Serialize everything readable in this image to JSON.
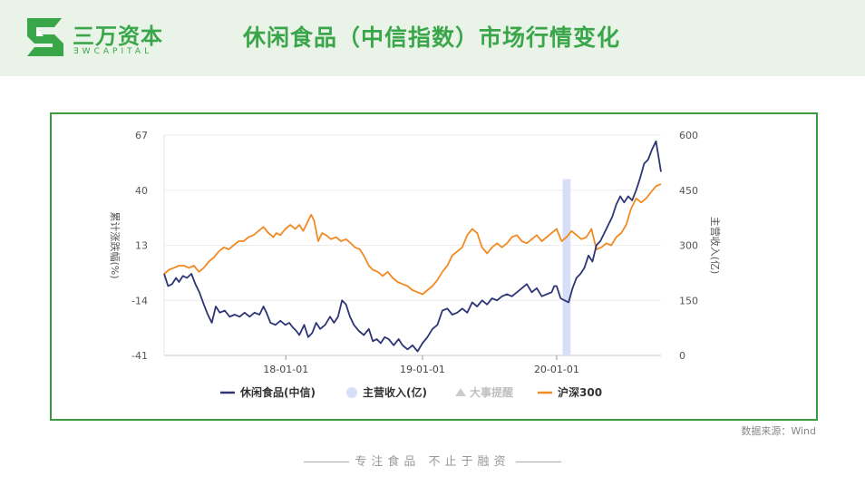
{
  "header": {
    "logo_cn": "三万资本",
    "logo_en": "ƎWCAPITAL",
    "title": "休闲食品（中信指数）市场行情变化"
  },
  "source_note": "数据来源：Wind",
  "footer": {
    "slogan": "专注食品  不止于融资"
  },
  "colors": {
    "brand_green": "#3aa64a",
    "frame_green": "#3e9a3e",
    "series_navy": "#2e3575",
    "series_orange": "#f28a24",
    "highlight_band": "#d6dff7",
    "legend_event": "#cccccc"
  },
  "chart_data": {
    "type": "line",
    "left_axis": {
      "label": "累计涨跌幅(%)",
      "ticks": [
        "67",
        "40",
        "13",
        "-14",
        "-41"
      ],
      "range": [
        -41,
        67
      ]
    },
    "right_axis": {
      "label": "主营收入(亿)",
      "ticks": [
        "600",
        "450",
        "300",
        "150",
        "0"
      ],
      "range": [
        0,
        600
      ]
    },
    "x_axis": {
      "ticks": [
        "18-01-01",
        "19-01-01",
        "20-01-01"
      ]
    },
    "legend": [
      "休闲食品(中信)",
      "主营收入(亿)",
      "大事提醒",
      "沪深300"
    ],
    "series": [
      {
        "name": "休闲食品(中信)",
        "axis": "left",
        "points": [
          [
            0.0,
            -1
          ],
          [
            0.008,
            -7
          ],
          [
            0.016,
            -6
          ],
          [
            0.024,
            -3
          ],
          [
            0.03,
            -5
          ],
          [
            0.038,
            -2
          ],
          [
            0.046,
            -3
          ],
          [
            0.055,
            -1
          ],
          [
            0.063,
            -6
          ],
          [
            0.071,
            -10
          ],
          [
            0.08,
            -16
          ],
          [
            0.088,
            -21
          ],
          [
            0.096,
            -25
          ],
          [
            0.104,
            -17
          ],
          [
            0.112,
            -20
          ],
          [
            0.122,
            -19
          ],
          [
            0.132,
            -22
          ],
          [
            0.142,
            -21
          ],
          [
            0.152,
            -22
          ],
          [
            0.162,
            -20
          ],
          [
            0.172,
            -22
          ],
          [
            0.182,
            -20
          ],
          [
            0.192,
            -21
          ],
          [
            0.2,
            -17
          ],
          [
            0.206,
            -20
          ],
          [
            0.214,
            -25
          ],
          [
            0.224,
            -26
          ],
          [
            0.234,
            -24
          ],
          [
            0.244,
            -26
          ],
          [
            0.252,
            -25
          ],
          [
            0.258,
            -27
          ],
          [
            0.266,
            -29
          ],
          [
            0.272,
            -31
          ],
          [
            0.282,
            -26
          ],
          [
            0.29,
            -32
          ],
          [
            0.298,
            -30
          ],
          [
            0.306,
            -25
          ],
          [
            0.314,
            -28
          ],
          [
            0.324,
            -26
          ],
          [
            0.334,
            -22
          ],
          [
            0.342,
            -25
          ],
          [
            0.35,
            -22
          ],
          [
            0.358,
            -14
          ],
          [
            0.366,
            -16
          ],
          [
            0.374,
            -22
          ],
          [
            0.382,
            -26
          ],
          [
            0.392,
            -29
          ],
          [
            0.402,
            -31
          ],
          [
            0.412,
            -28
          ],
          [
            0.42,
            -34
          ],
          [
            0.428,
            -33
          ],
          [
            0.436,
            -35
          ],
          [
            0.444,
            -32
          ],
          [
            0.452,
            -33
          ],
          [
            0.462,
            -36
          ],
          [
            0.472,
            -33
          ],
          [
            0.48,
            -36
          ],
          [
            0.49,
            -38
          ],
          [
            0.5,
            -36
          ],
          [
            0.51,
            -39
          ],
          [
            0.52,
            -35
          ],
          [
            0.53,
            -32
          ],
          [
            0.54,
            -28
          ],
          [
            0.55,
            -26
          ],
          [
            0.56,
            -19
          ],
          [
            0.57,
            -18
          ],
          [
            0.58,
            -21
          ],
          [
            0.59,
            -20
          ],
          [
            0.6,
            -18
          ],
          [
            0.61,
            -20
          ],
          [
            0.62,
            -15
          ],
          [
            0.63,
            -17
          ],
          [
            0.64,
            -14
          ],
          [
            0.65,
            -16
          ],
          [
            0.66,
            -13
          ],
          [
            0.67,
            -14
          ],
          [
            0.68,
            -12
          ],
          [
            0.69,
            -11
          ],
          [
            0.7,
            -12
          ],
          [
            0.71,
            -10
          ],
          [
            0.72,
            -8
          ],
          [
            0.73,
            -6
          ],
          [
            0.74,
            -10
          ],
          [
            0.75,
            -8
          ],
          [
            0.76,
            -12
          ],
          [
            0.77,
            -11
          ],
          [
            0.78,
            -10
          ],
          [
            0.785,
            -7
          ],
          [
            0.79,
            -7
          ],
          [
            0.798,
            -13
          ],
          [
            0.806,
            -14
          ],
          [
            0.814,
            -15
          ],
          [
            0.822,
            -8
          ],
          [
            0.83,
            -3
          ],
          [
            0.838,
            -1
          ],
          [
            0.846,
            2
          ],
          [
            0.854,
            8
          ],
          [
            0.862,
            5
          ],
          [
            0.87,
            13
          ],
          [
            0.878,
            15
          ],
          [
            0.886,
            19
          ],
          [
            0.894,
            23
          ],
          [
            0.902,
            27
          ],
          [
            0.91,
            33
          ],
          [
            0.918,
            37
          ],
          [
            0.926,
            34
          ],
          [
            0.934,
            37
          ],
          [
            0.942,
            35
          ],
          [
            0.95,
            40
          ],
          [
            0.958,
            46
          ],
          [
            0.966,
            53
          ],
          [
            0.974,
            55
          ],
          [
            0.982,
            60
          ],
          [
            0.99,
            64
          ],
          [
            1.0,
            49
          ]
        ]
      },
      {
        "name": "沪深300",
        "axis": "left",
        "points": [
          [
            0.0,
            -1
          ],
          [
            0.01,
            1
          ],
          [
            0.02,
            2
          ],
          [
            0.03,
            3
          ],
          [
            0.04,
            3
          ],
          [
            0.05,
            2
          ],
          [
            0.06,
            3
          ],
          [
            0.07,
            0
          ],
          [
            0.08,
            2
          ],
          [
            0.09,
            5
          ],
          [
            0.1,
            7
          ],
          [
            0.11,
            10
          ],
          [
            0.12,
            12
          ],
          [
            0.13,
            11
          ],
          [
            0.14,
            13
          ],
          [
            0.15,
            15
          ],
          [
            0.16,
            15
          ],
          [
            0.17,
            17
          ],
          [
            0.18,
            18
          ],
          [
            0.19,
            20
          ],
          [
            0.2,
            22
          ],
          [
            0.21,
            19
          ],
          [
            0.22,
            17
          ],
          [
            0.226,
            19
          ],
          [
            0.234,
            18
          ],
          [
            0.244,
            21
          ],
          [
            0.254,
            23
          ],
          [
            0.264,
            21
          ],
          [
            0.272,
            23
          ],
          [
            0.28,
            20
          ],
          [
            0.29,
            25
          ],
          [
            0.296,
            28
          ],
          [
            0.302,
            25
          ],
          [
            0.31,
            15
          ],
          [
            0.318,
            19
          ],
          [
            0.326,
            18
          ],
          [
            0.336,
            16
          ],
          [
            0.346,
            17
          ],
          [
            0.356,
            15
          ],
          [
            0.366,
            16
          ],
          [
            0.376,
            14
          ],
          [
            0.384,
            12
          ],
          [
            0.394,
            11
          ],
          [
            0.404,
            7
          ],
          [
            0.412,
            3
          ],
          [
            0.42,
            1
          ],
          [
            0.43,
            0
          ],
          [
            0.44,
            -2
          ],
          [
            0.45,
            0
          ],
          [
            0.46,
            -3
          ],
          [
            0.47,
            -5
          ],
          [
            0.48,
            -6
          ],
          [
            0.49,
            -7
          ],
          [
            0.5,
            -9
          ],
          [
            0.51,
            -10
          ],
          [
            0.52,
            -11
          ],
          [
            0.53,
            -9
          ],
          [
            0.54,
            -7
          ],
          [
            0.55,
            -4
          ],
          [
            0.56,
            0
          ],
          [
            0.57,
            3
          ],
          [
            0.58,
            8
          ],
          [
            0.59,
            10
          ],
          [
            0.6,
            12
          ],
          [
            0.61,
            18
          ],
          [
            0.62,
            21
          ],
          [
            0.63,
            19
          ],
          [
            0.64,
            12
          ],
          [
            0.65,
            9
          ],
          [
            0.66,
            12
          ],
          [
            0.67,
            14
          ],
          [
            0.68,
            12
          ],
          [
            0.69,
            14
          ],
          [
            0.7,
            17
          ],
          [
            0.71,
            18
          ],
          [
            0.72,
            15
          ],
          [
            0.73,
            14
          ],
          [
            0.74,
            16
          ],
          [
            0.75,
            18
          ],
          [
            0.76,
            15
          ],
          [
            0.77,
            17
          ],
          [
            0.78,
            19
          ],
          [
            0.79,
            21
          ],
          [
            0.8,
            15
          ],
          [
            0.81,
            17
          ],
          [
            0.82,
            20
          ],
          [
            0.83,
            18
          ],
          [
            0.84,
            16
          ],
          [
            0.85,
            17
          ],
          [
            0.86,
            21
          ],
          [
            0.87,
            11
          ],
          [
            0.88,
            12
          ],
          [
            0.89,
            14
          ],
          [
            0.9,
            13
          ],
          [
            0.91,
            17
          ],
          [
            0.92,
            19
          ],
          [
            0.93,
            23
          ],
          [
            0.94,
            31
          ],
          [
            0.95,
            36
          ],
          [
            0.96,
            34
          ],
          [
            0.97,
            36
          ],
          [
            0.98,
            39
          ],
          [
            0.99,
            42
          ],
          [
            1.0,
            43
          ]
        ]
      }
    ],
    "highlight_band": {
      "name": "主营收入(亿)",
      "x_from": 0.802,
      "x_to": 0.818,
      "value": 480
    }
  }
}
